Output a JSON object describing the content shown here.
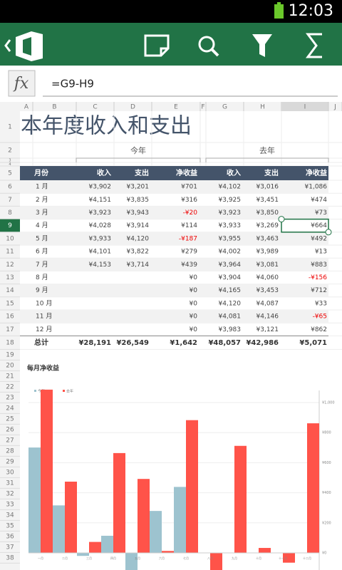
{
  "status_bar": {
    "time": "12:03"
  },
  "formula_bar": {
    "label": "fx",
    "formula": "=G9-H9"
  },
  "columns": [
    "A",
    "B",
    "C",
    "D",
    "E",
    "F",
    "G",
    "H",
    "I",
    "J"
  ],
  "row_numbers": [
    1,
    2,
    3,
    4,
    5,
    6,
    7,
    8,
    9,
    10,
    11,
    12,
    13,
    14,
    15,
    16,
    17,
    18,
    19,
    20,
    21,
    22,
    23,
    24,
    25,
    26,
    27,
    28,
    29,
    30,
    31,
    32,
    33,
    34,
    35,
    36,
    37,
    38
  ],
  "sheet": {
    "title": "本年度收入和支出",
    "group_labels": [
      "今年",
      "去年"
    ],
    "header": [
      "月份",
      "收入",
      "支出",
      "净收益",
      "收入",
      "支出",
      "净收益"
    ],
    "rows": [
      [
        "1 月",
        "¥3,902",
        "¥3,201",
        "¥701",
        "¥4,102",
        "¥3,016",
        "¥1,086"
      ],
      [
        "2 月",
        "¥4,151",
        "¥3,835",
        "¥316",
        "¥3,925",
        "¥3,451",
        "¥474"
      ],
      [
        "3 月",
        "¥3,923",
        "¥3,943",
        "-¥20",
        "¥3,923",
        "¥3,850",
        "¥73"
      ],
      [
        "4 月",
        "¥4,028",
        "¥3,914",
        "¥114",
        "¥3,933",
        "¥3,269",
        "¥664"
      ],
      [
        "5 月",
        "¥3,933",
        "¥4,120",
        "-¥187",
        "¥3,955",
        "¥3,463",
        "¥492"
      ],
      [
        "6 月",
        "¥4,101",
        "¥3,822",
        "¥279",
        "¥4,002",
        "¥3,989",
        "¥13"
      ],
      [
        "7 月",
        "¥4,153",
        "¥3,714",
        "¥439",
        "¥3,964",
        "¥3,081",
        "¥883"
      ],
      [
        "8 月",
        "",
        "",
        "¥0",
        "¥3,904",
        "¥4,060",
        "-¥156"
      ],
      [
        "9 月",
        "",
        "",
        "¥0",
        "¥4,165",
        "¥3,453",
        "¥712"
      ],
      [
        "10 月",
        "",
        "",
        "¥0",
        "¥4,120",
        "¥4,087",
        "¥33"
      ],
      [
        "11 月",
        "",
        "",
        "¥0",
        "¥4,081",
        "¥4,146",
        "-¥65"
      ],
      [
        "12 月",
        "",
        "",
        "¥0",
        "¥3,983",
        "¥3,121",
        "¥862"
      ]
    ],
    "total": [
      "总计",
      "¥28,191",
      "¥26,549",
      "¥1,642",
      "¥48,057",
      "¥42,986",
      "¥5,071"
    ]
  },
  "chart_data": {
    "type": "bar",
    "title": "每月净收益",
    "categories": [
      "一月",
      "二月",
      "三月",
      "四月",
      "五月",
      "六月",
      "七月",
      "八月",
      "九月",
      "十月",
      "十一月",
      "十二月"
    ],
    "series": [
      {
        "name": "今年",
        "color": "#9dc3cf",
        "values": [
          701,
          316,
          -20,
          114,
          -187,
          279,
          439,
          0,
          0,
          0,
          0,
          0
        ]
      },
      {
        "name": "去年",
        "color": "#ff5349",
        "values": [
          1086,
          474,
          73,
          664,
          492,
          13,
          883,
          -156,
          712,
          33,
          -65,
          862
        ]
      }
    ],
    "ylim": [
      -200,
      1000
    ],
    "yticks": [
      {
        "value": 0,
        "label": "¥0"
      },
      {
        "value": 200,
        "label": "¥200"
      },
      {
        "value": 400,
        "label": "¥400"
      },
      {
        "value": 600,
        "label": "¥600"
      },
      {
        "value": 800,
        "label": "¥800"
      },
      {
        "value": 1000,
        "label": "¥1,000"
      }
    ],
    "grid": true,
    "legend": "top-left"
  }
}
